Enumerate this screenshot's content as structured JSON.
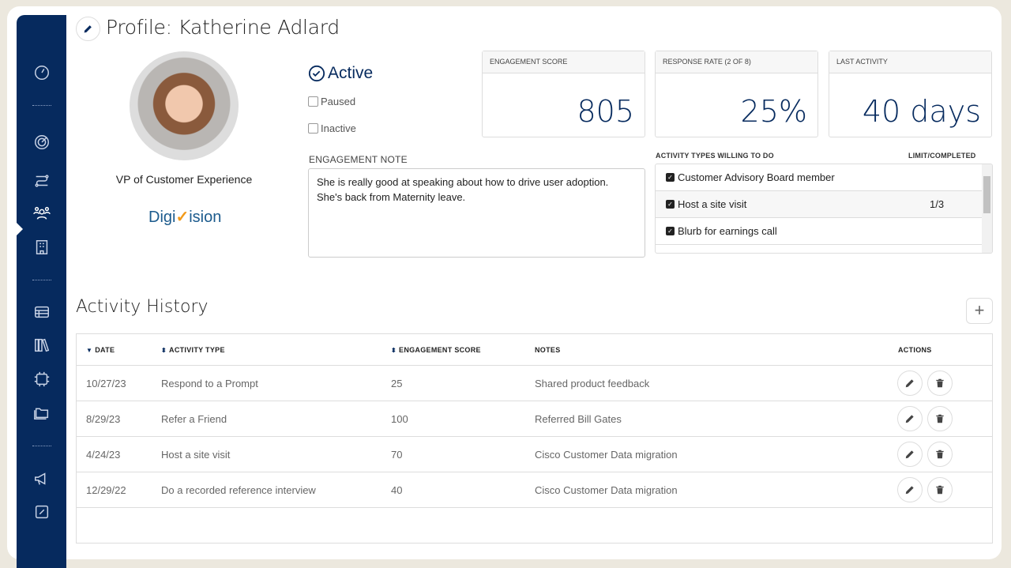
{
  "colors": {
    "brand": "#062a5e",
    "background": "#ece8de",
    "logo_blue": "#1c5b8d",
    "logo_orange": "#f29a1a"
  },
  "sidebar": {
    "items": [
      {
        "icon": "dashboard-icon"
      },
      {
        "icon": "target-icon"
      },
      {
        "icon": "workflow-icon"
      },
      {
        "icon": "people-icon",
        "active": true
      },
      {
        "icon": "building-icon"
      },
      {
        "icon": "table-icon"
      },
      {
        "icon": "library-icon"
      },
      {
        "icon": "ai-chip-icon"
      },
      {
        "icon": "folder-icon"
      },
      {
        "icon": "megaphone-icon"
      },
      {
        "icon": "edit-icon"
      }
    ]
  },
  "profile": {
    "title": "Profile: Katherine Adlard",
    "job_title": "VP of Customer Experience",
    "company_logo": "DigiVision",
    "status": {
      "active": "Active",
      "paused": "Paused",
      "inactive": "Inactive"
    },
    "engagement_note_label": "ENGAGEMENT NOTE",
    "engagement_note": "She is really good at speaking about how to drive user adoption.\nShe's back from Maternity leave."
  },
  "stats": [
    {
      "label": "ENGAGEMENT SCORE",
      "value": "805"
    },
    {
      "label": "RESPONSE RATE (2 OF 8)",
      "value": "25%"
    },
    {
      "label": "LAST ACTIVITY",
      "value": "40 days"
    }
  ],
  "activity_types": {
    "label": "ACTIVITY TYPES WILLING TO DO",
    "limit_label": "LIMIT/COMPLETED",
    "items": [
      {
        "name": "Customer Advisory Board member",
        "checked": true,
        "limit": ""
      },
      {
        "name": "Host a site visit",
        "checked": true,
        "limit": "1/3"
      },
      {
        "name": "Blurb for earnings call",
        "checked": true,
        "limit": ""
      }
    ]
  },
  "history": {
    "title": "Activity History",
    "add_label": "+",
    "columns": [
      "DATE",
      "ACTIVITY TYPE",
      "ENGAGEMENT SCORE",
      "NOTES",
      "ACTIONS"
    ],
    "rows": [
      {
        "date": "10/27/23",
        "type": "Respond to a Prompt",
        "score": "25",
        "notes": "Shared product feedback"
      },
      {
        "date": "8/29/23",
        "type": "Refer a Friend",
        "score": "100",
        "notes": "Referred Bill Gates"
      },
      {
        "date": "4/24/23",
        "type": "Host a site visit",
        "score": "70",
        "notes": "Cisco Customer Data migration"
      },
      {
        "date": "12/29/22",
        "type": "Do a recorded reference interview",
        "score": "40",
        "notes": "Cisco Customer Data migration"
      }
    ]
  }
}
